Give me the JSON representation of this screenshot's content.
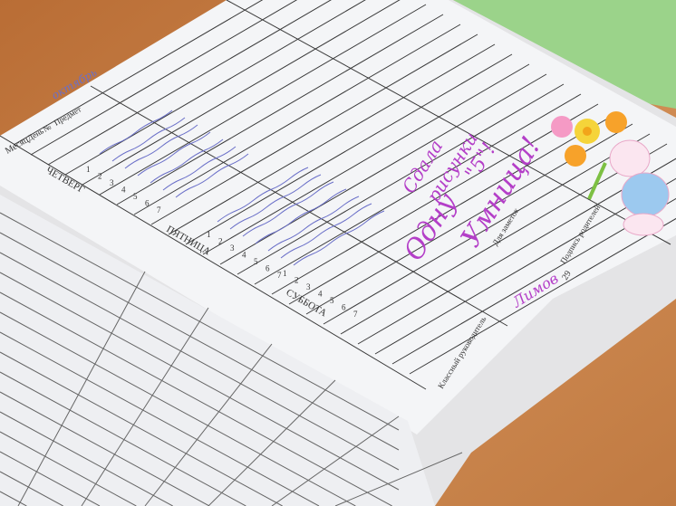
{
  "diary": {
    "header": {
      "month": "Месяц",
      "day": "День",
      "number": "№",
      "subject": "Предмет"
    },
    "days": [
      "ЧЕТВЕРГ",
      "ПЯТНИЦА",
      "СУББОТА"
    ],
    "lesson_numbers": [
      "1",
      "2",
      "3",
      "4",
      "5",
      "6",
      "7"
    ],
    "notes_label": "Для заметок",
    "parent_signature_label": "Подпись родителей",
    "teacher_label": "Классный руководитель",
    "page_number": "29",
    "handwriting": {
      "note_line1": "Сдала",
      "note_line2": "рисунки",
      "grade_line": "\"5\"!",
      "praise_line1": "Одну",
      "praise_line2": "Умница!",
      "teacher_sign": "Лимов",
      "month_written": "октябрь"
    }
  },
  "colors": {
    "wood": "#c9834a",
    "paper": "#f4f5f7",
    "ink_purple": "#b43fc8",
    "ink_blue": "#6a6fc8",
    "lines": "#3a3a3a"
  },
  "sticker": {
    "icon": "bunny-with-flowers-icon"
  }
}
